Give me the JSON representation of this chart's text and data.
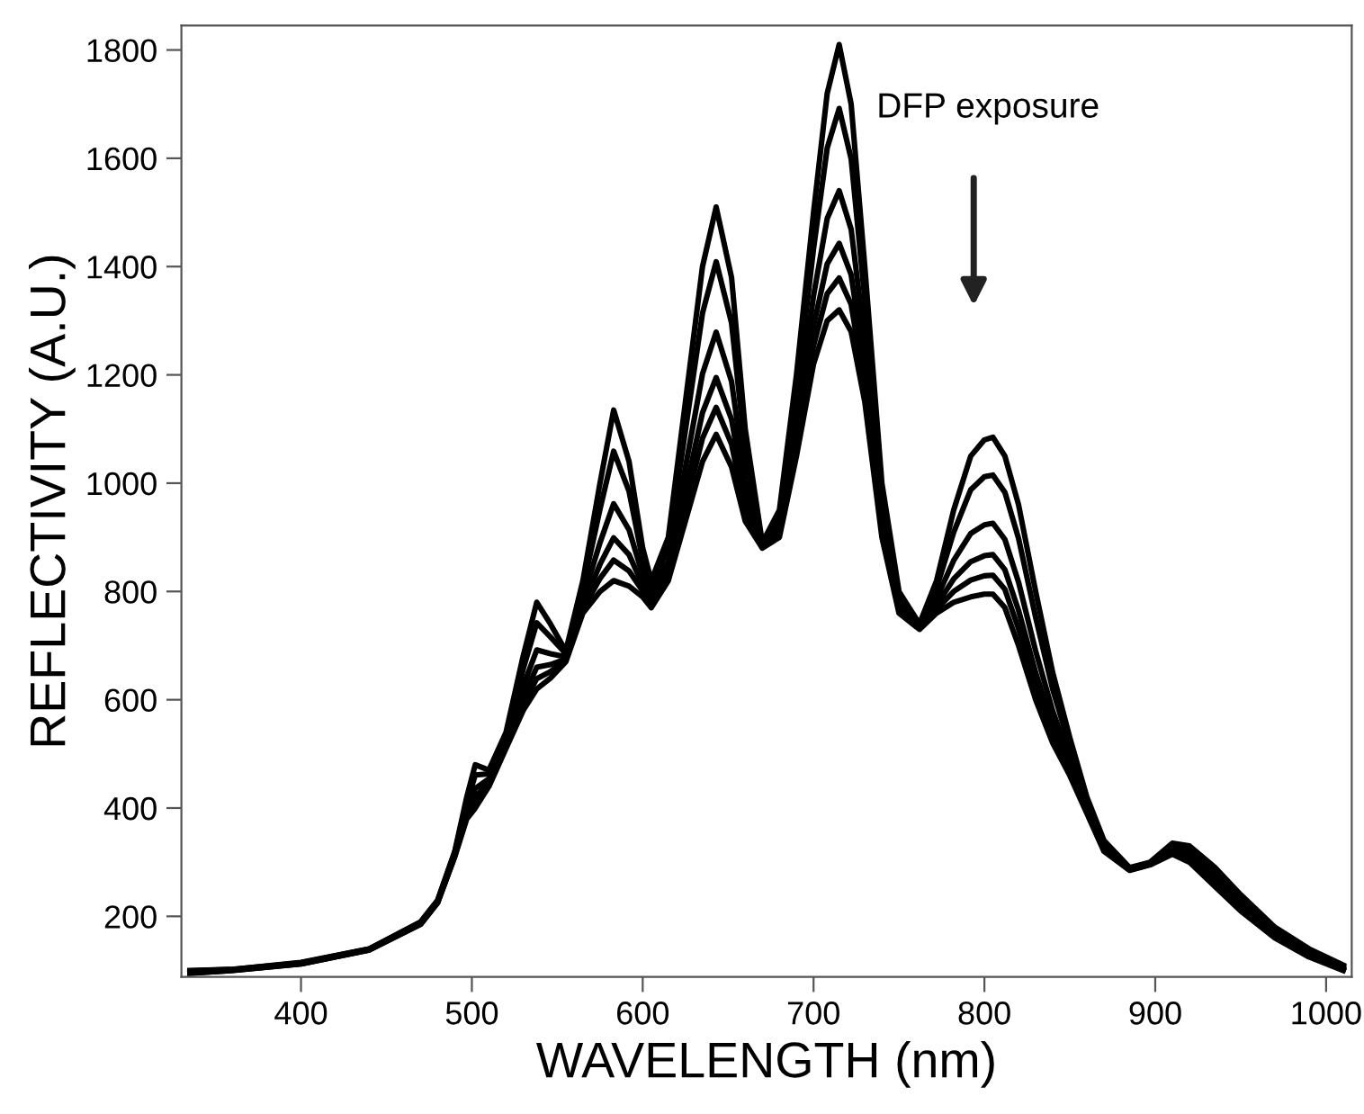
{
  "chart_data": {
    "type": "line",
    "xlabel": "WAVELENGTH (nm)",
    "ylabel": "REFLECTIVITY (A.U.)",
    "annotations": [
      "DFP exposure"
    ],
    "x": [
      335,
      360,
      400,
      440,
      470,
      480,
      490,
      497,
      502,
      510,
      520,
      530,
      538,
      546,
      555,
      565,
      575,
      583,
      592,
      600,
      605,
      615,
      625,
      635,
      643,
      652,
      660,
      670,
      680,
      690,
      700,
      708,
      715,
      722,
      730,
      740,
      750,
      762,
      772,
      782,
      792,
      800,
      805,
      812,
      820,
      830,
      840,
      850,
      860,
      870,
      885,
      897,
      910,
      920,
      935,
      950,
      970,
      990,
      1010
    ],
    "series": [
      {
        "color": "#000000",
        "values": [
          100,
          102,
          115,
          140,
          190,
          230,
          320,
          420,
          480,
          470,
          540,
          680,
          780,
          740,
          690,
          820,
          1000,
          1135,
          1040,
          880,
          820,
          900,
          1150,
          1400,
          1510,
          1380,
          1100,
          890,
          950,
          1200,
          1500,
          1720,
          1810,
          1700,
          1400,
          1000,
          800,
          740,
          820,
          950,
          1050,
          1080,
          1085,
          1050,
          960,
          800,
          650,
          530,
          420,
          340,
          290,
          300,
          335,
          330,
          290,
          240,
          180,
          140,
          110
        ]
      },
      {
        "color": "#000000",
        "values": [
          99,
          102,
          114,
          140,
          189,
          229,
          318,
          410,
          461,
          463,
          533,
          656,
          742,
          716,
          685,
          806,
          952,
          1059,
          985,
          858,
          808,
          881,
          1097,
          1314,
          1409,
          1296,
          1059,
          888,
          938,
          1164,
          1433,
          1619,
          1692,
          1599,
          1340,
          976,
          790,
          738,
          806,
          909,
          988,
          1012,
          1015,
          983,
          898,
          752,
          619,
          513,
          413,
          335,
          289,
          299,
          330,
          323,
          282,
          233,
          175,
          136,
          108
        ]
      },
      {
        "color": "#000000",
        "values": [
          97,
          101,
          113,
          139,
          187,
          227,
          315,
          398,
          436,
          454,
          524,
          625,
          692,
          685,
          679,
          787,
          890,
          962,
          914,
          830,
          792,
          856,
          1029,
          1202,
          1279,
          1188,
          1007,
          885,
          923,
          1118,
          1346,
          1489,
          1540,
          1469,
          1263,
          945,
          778,
          735,
          787,
          857,
          907,
          923,
          926,
          896,
          817,
          690,
          579,
          492,
          404,
          329,
          287,
          297,
          324,
          314,
          271,
          224,
          169,
          132,
          105
        ]
      },
      {
        "color": "#000000",
        "values": [
          96,
          101,
          113,
          139,
          186,
          226,
          313,
          390,
          420,
          448,
          518,
          605,
          660,
          665,
          675,
          775,
          850,
          899,
          868,
          812,
          782,
          840,
          985,
          1130,
          1195,
          1118,
          973,
          883,
          913,
          1088,
          1290,
          1405,
          1443,
          1385,
          1213,
          925,
          770,
          733,
          775,
          823,
          855,
          866,
          868,
          840,
          765,
          650,
          553,
          478,
          398,
          325,
          286,
          296,
          320,
          308,
          264,
          218,
          165,
          129,
          103
        ]
      },
      {
        "color": "#000000",
        "values": [
          95,
          100,
          112,
          138,
          186,
          226,
          311,
          385,
          410,
          444,
          514,
          592,
          639,
          652,
          672,
          767,
          824,
          858,
          838,
          801,
          776,
          830,
          956,
          1083,
          1140,
          1072,
          950,
          881,
          906,
          1068,
          1254,
          1350,
          1379,
          1330,
          1180,
          912,
          765,
          731,
          767,
          800,
          821,
          829,
          830,
          804,
          731,
          624,
          536,
          468,
          394,
          322,
          286,
          296,
          317,
          304,
          259,
          214,
          162,
          127,
          101
        ]
      },
      {
        "color": "#000000",
        "values": [
          95,
          100,
          112,
          138,
          185,
          225,
          310,
          380,
          400,
          440,
          510,
          580,
          620,
          640,
          670,
          760,
          800,
          820,
          810,
          790,
          770,
          820,
          930,
          1040,
          1090,
          1030,
          930,
          880,
          900,
          1050,
          1220,
          1300,
          1320,
          1280,
          1150,
          900,
          760,
          730,
          760,
          780,
          790,
          795,
          795,
          770,
          700,
          600,
          520,
          460,
          390,
          320,
          285,
          295,
          315,
          300,
          255,
          210,
          160,
          125,
          100
        ]
      }
    ],
    "xlim": [
      330,
      1015
    ],
    "ylim": [
      88,
      1845
    ],
    "xticks": [
      400,
      500,
      600,
      700,
      800,
      900,
      1000
    ],
    "yticks": [
      200,
      400,
      600,
      800,
      1000,
      1200,
      1400,
      1600,
      1800
    ],
    "grid": false,
    "legend": false,
    "marker": "none",
    "line_style": "solid"
  }
}
